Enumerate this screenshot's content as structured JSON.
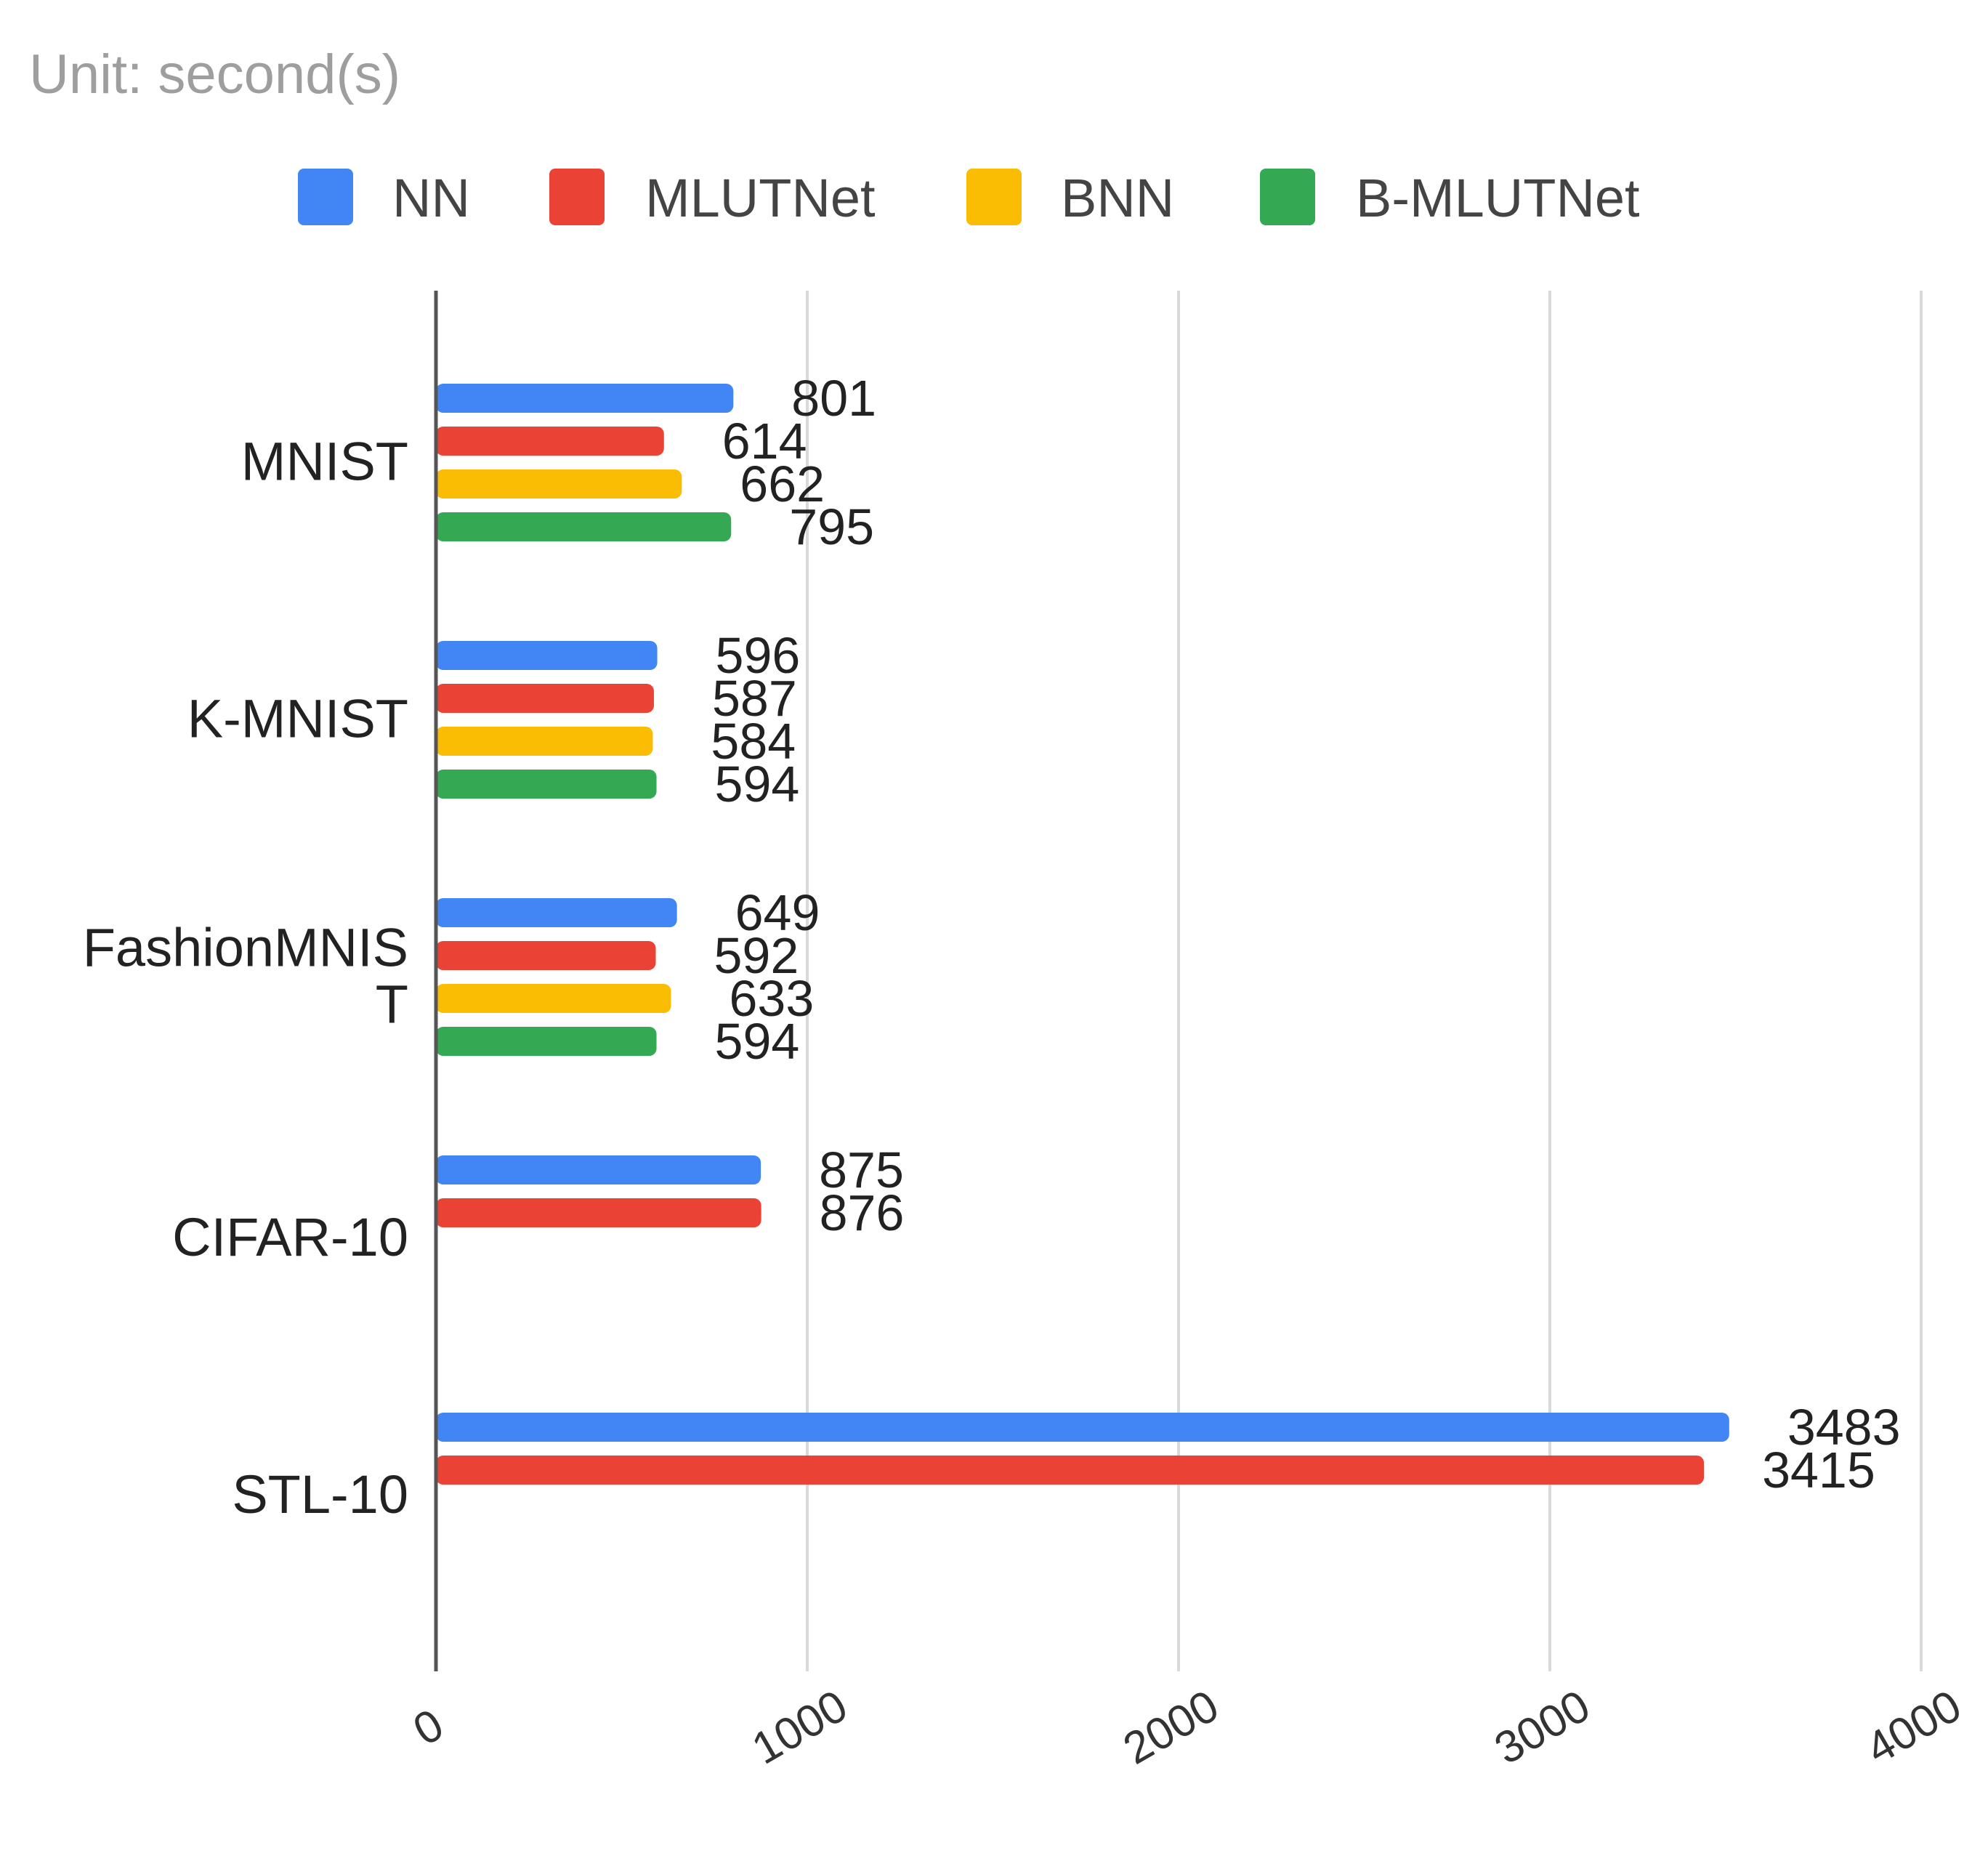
{
  "subtitle": "Unit: second(s)",
  "chart_data": {
    "type": "bar",
    "orientation": "horizontal",
    "title": "",
    "subtitle": "Unit: second(s)",
    "xlabel": "",
    "ylabel": "",
    "xlim": [
      0,
      4000
    ],
    "x_ticks": [
      0,
      1000,
      2000,
      3000,
      4000
    ],
    "grid": true,
    "legend_position": "top",
    "categories": [
      [
        "MNIST"
      ],
      [
        "K-MNIST"
      ],
      [
        "FashionMNIS",
        "T"
      ],
      [
        "CIFAR-10"
      ],
      [
        "STL-10"
      ]
    ],
    "series": [
      {
        "name": "NN",
        "color": "#4285F4",
        "values": [
          801,
          596,
          649,
          875,
          3483
        ]
      },
      {
        "name": "MLUTNet",
        "color": "#EA4335",
        "values": [
          614,
          587,
          592,
          876,
          3415
        ]
      },
      {
        "name": "BNN",
        "color": "#FBBC04",
        "values": [
          662,
          584,
          633,
          null,
          null
        ]
      },
      {
        "name": "B-MLUTNet",
        "color": "#34A853",
        "values": [
          795,
          594,
          594,
          null,
          null
        ]
      }
    ]
  }
}
